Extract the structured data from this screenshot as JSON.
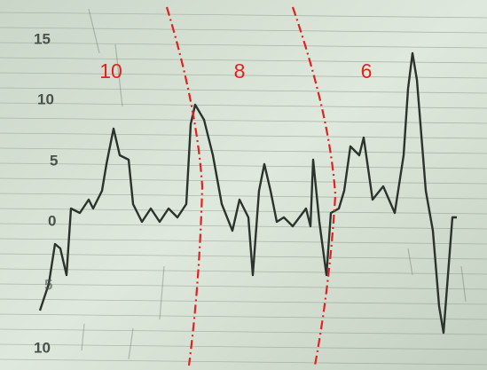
{
  "scale_labels": [
    "15",
    "10",
    "5",
    "0",
    "5",
    "10"
  ],
  "zone_labels": [
    "10",
    "8",
    "6"
  ]
}
